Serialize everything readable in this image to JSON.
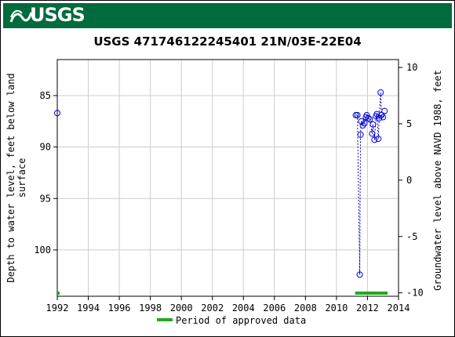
{
  "header": {
    "logo_text": "USGS"
  },
  "chart_data": {
    "type": "scatter",
    "title": "USGS 471746122245401 21N/03E-22E04",
    "ylabel_left": [
      "Depth to water level, feet below land",
      "surface"
    ],
    "ylabel_right": "Groundwater level above NAVD 1988, feet",
    "xlim": [
      1992,
      2014
    ],
    "ylim_left": [
      104.5,
      81.5
    ],
    "ylim_right": [
      -10.3,
      10.7
    ],
    "x_ticks": [
      "1992",
      "1994",
      "1996",
      "1998",
      "2000",
      "2002",
      "2004",
      "2006",
      "2008",
      "2010",
      "2012",
      "2014"
    ],
    "y_ticks_left": [
      85,
      90,
      95,
      100
    ],
    "y_ticks_right": [
      10,
      5,
      0,
      -5,
      -10
    ],
    "grid": true,
    "legend": {
      "label": "Period of approved data",
      "color": "#22a822",
      "position": "bottom"
    },
    "series": [
      {
        "marker": "open-circle",
        "color": "#0000cc",
        "connected": true,
        "points": [
          [
            1992.0,
            86.7
          ],
          [
            2011.25,
            86.9
          ],
          [
            2011.35,
            86.9
          ],
          [
            2011.5,
            102.4
          ],
          [
            2011.55,
            88.8
          ],
          [
            2011.6,
            87.5
          ],
          [
            2011.7,
            87.9
          ],
          [
            2011.8,
            87.7
          ],
          [
            2011.9,
            87.1
          ],
          [
            2011.95,
            86.9
          ],
          [
            2012.05,
            87.2
          ],
          [
            2012.15,
            87.3
          ],
          [
            2012.3,
            88.7
          ],
          [
            2012.35,
            87.8
          ],
          [
            2012.45,
            89.3
          ],
          [
            2012.55,
            87.0
          ],
          [
            2012.6,
            86.8
          ],
          [
            2012.7,
            89.2
          ],
          [
            2012.75,
            87.2
          ],
          [
            2012.85,
            84.7
          ],
          [
            2012.9,
            86.9
          ],
          [
            2013.0,
            87.1
          ],
          [
            2013.1,
            86.5
          ]
        ]
      }
    ],
    "approved_periods": [
      [
        1992.0,
        1992.08
      ],
      [
        2011.2,
        2013.3
      ]
    ]
  }
}
